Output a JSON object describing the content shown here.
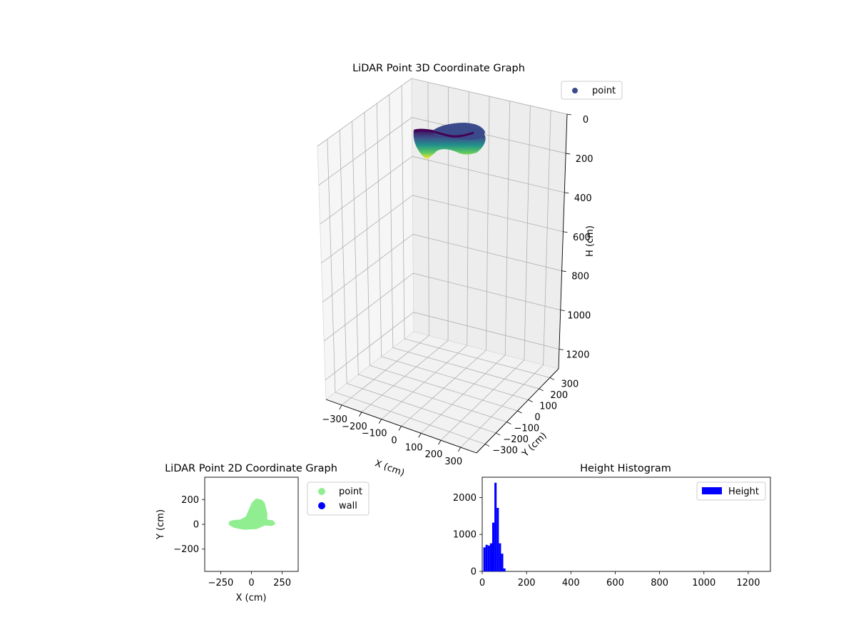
{
  "figure": {
    "colors": {
      "point_3d": "#3b4b8c",
      "point_2d": "#90ee90",
      "wall": "#0000ff",
      "histogram": "#0000ff"
    }
  },
  "chart_data": [
    {
      "type": "scatter3d",
      "title": "LiDAR Point 3D Coordinate Graph",
      "xlabel": "X (cm)",
      "ylabel": "Y (cm)",
      "zlabel": "H (cm)",
      "xlim": [
        -380,
        380
      ],
      "ylim": [
        -380,
        380
      ],
      "zlim": [
        1300,
        0
      ],
      "z_inverted": true,
      "colormap": "viridis",
      "x_ticks": [
        "−300",
        "−200",
        "−100",
        "0",
        "100",
        "200",
        "300"
      ],
      "y_ticks": [
        "−300",
        "−200",
        "−100",
        "0",
        "100",
        "200",
        "300"
      ],
      "z_ticks": [
        "0",
        "200",
        "400",
        "600",
        "800",
        "1000",
        "1200"
      ],
      "legend": [
        "point"
      ],
      "legend_position": "top-right",
      "grid": true
    },
    {
      "type": "scatter",
      "title": "LiDAR Point 2D Coordinate Graph",
      "xlabel": "X (cm)",
      "ylabel": "Y (cm)",
      "xlim": [
        -380,
        380
      ],
      "ylim": [
        -380,
        380
      ],
      "x_ticks": [
        "−250",
        "0",
        "250"
      ],
      "y_ticks": [
        "200",
        "0",
        "−200"
      ],
      "legend": [
        "point",
        "wall"
      ],
      "legend_position": "outside right",
      "point_outline": [
        [
          -175,
          0
        ],
        [
          -140,
          -20
        ],
        [
          -60,
          -35
        ],
        [
          40,
          -30
        ],
        [
          110,
          0
        ],
        [
          160,
          -5
        ],
        [
          185,
          5
        ],
        [
          170,
          25
        ],
        [
          120,
          30
        ],
        [
          120,
          90
        ],
        [
          100,
          170
        ],
        [
          80,
          190
        ],
        [
          40,
          200
        ],
        [
          10,
          170
        ],
        [
          -20,
          100
        ],
        [
          -40,
          55
        ],
        [
          -90,
          30
        ],
        [
          -150,
          25
        ],
        [
          -175,
          15
        ]
      ]
    },
    {
      "type": "bar",
      "title": "Height Histogram",
      "xlabel": "",
      "ylabel": "",
      "xlim": [
        0,
        1300
      ],
      "ylim": [
        0,
        2550
      ],
      "x_ticks": [
        "0",
        "200",
        "400",
        "600",
        "800",
        "1000",
        "1200"
      ],
      "y_ticks": [
        "0",
        "1000",
        "2000"
      ],
      "legend": [
        "Height"
      ],
      "legend_position": "top-right",
      "series": [
        {
          "name": "Height",
          "bin_edges": [
            5,
            15,
            25,
            35,
            45,
            55,
            65,
            75,
            85,
            95,
            105
          ],
          "values": [
            650,
            720,
            700,
            760,
            1320,
            2400,
            1720,
            760,
            480,
            80
          ]
        }
      ]
    }
  ]
}
